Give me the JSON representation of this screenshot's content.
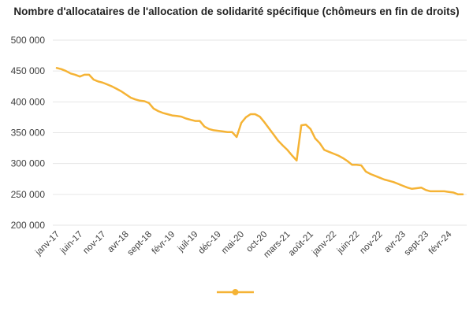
{
  "chart_data": {
    "type": "line",
    "title": "Nombre d'allocataires de l'allocation de solidarité spécifique (chômeurs en fin de droits)",
    "xlabel": "",
    "ylabel": "",
    "ylim": [
      200000,
      500000
    ],
    "yticks": [
      200000,
      250000,
      300000,
      350000,
      400000,
      450000,
      500000
    ],
    "ytick_labels": [
      "200 000",
      "250 000",
      "300 000",
      "350 000",
      "400 000",
      "450 000",
      "500 000"
    ],
    "xtick_labels": [
      "janv-17",
      "juin-17",
      "nov-17",
      "avr-18",
      "sept-18",
      "févr-19",
      "juil-19",
      "déc-19",
      "mai-20",
      "oct-20",
      "mars-21",
      "août-21",
      "janv-22",
      "juin-22",
      "nov-22",
      "avr-23",
      "sept-23",
      "févr-24"
    ],
    "grid": true,
    "legend_position": "bottom",
    "colors": {
      "series": "#F5B335",
      "grid": "#E6E6E6",
      "text": "#404040"
    },
    "series": [
      {
        "name": "",
        "x": [
          "2017-01",
          "2017-02",
          "2017-03",
          "2017-04",
          "2017-05",
          "2017-06",
          "2017-07",
          "2017-08",
          "2017-09",
          "2017-10",
          "2017-11",
          "2017-12",
          "2018-01",
          "2018-02",
          "2018-03",
          "2018-04",
          "2018-05",
          "2018-06",
          "2018-07",
          "2018-08",
          "2018-09",
          "2018-10",
          "2018-11",
          "2018-12",
          "2019-01",
          "2019-02",
          "2019-03",
          "2019-04",
          "2019-05",
          "2019-06",
          "2019-07",
          "2019-08",
          "2019-09",
          "2019-10",
          "2019-11",
          "2019-12",
          "2020-01",
          "2020-02",
          "2020-03",
          "2020-04",
          "2020-05",
          "2020-06",
          "2020-07",
          "2020-08",
          "2020-09",
          "2020-10",
          "2020-11",
          "2020-12",
          "2021-01",
          "2021-02",
          "2021-03",
          "2021-04",
          "2021-05",
          "2021-06",
          "2021-07",
          "2021-08",
          "2021-09",
          "2021-10",
          "2021-11",
          "2021-12",
          "2022-01",
          "2022-02",
          "2022-03",
          "2022-04",
          "2022-05",
          "2022-06",
          "2022-07",
          "2022-08",
          "2022-09",
          "2022-10",
          "2022-11",
          "2022-12",
          "2023-01",
          "2023-02",
          "2023-03",
          "2023-04",
          "2023-05",
          "2023-06",
          "2023-07",
          "2023-08",
          "2023-09",
          "2023-10",
          "2023-11",
          "2023-12",
          "2024-01",
          "2024-02",
          "2024-03",
          "2024-04",
          "2024-05"
        ],
        "values": [
          455000,
          453000,
          450000,
          446000,
          444000,
          441000,
          444000,
          444000,
          436000,
          433000,
          431000,
          428000,
          425000,
          421000,
          417000,
          412000,
          407000,
          404000,
          402000,
          401000,
          398000,
          389000,
          385000,
          382000,
          380000,
          378000,
          377000,
          376000,
          373000,
          371000,
          369000,
          369000,
          360000,
          356000,
          354000,
          353000,
          352000,
          351000,
          351000,
          343000,
          366000,
          375000,
          380000,
          380000,
          376000,
          367000,
          357000,
          347000,
          337000,
          329000,
          322000,
          313000,
          305000,
          362000,
          363000,
          356000,
          341000,
          333000,
          322000,
          319000,
          316000,
          313000,
          309000,
          304000,
          298000,
          298000,
          297000,
          287000,
          283000,
          280000,
          277000,
          274000,
          272000,
          270000,
          267000,
          264000,
          261000,
          259000,
          260000,
          261000,
          257000,
          255000,
          255000,
          255000,
          255000,
          254000,
          253000,
          250000,
          250000
        ]
      }
    ]
  }
}
